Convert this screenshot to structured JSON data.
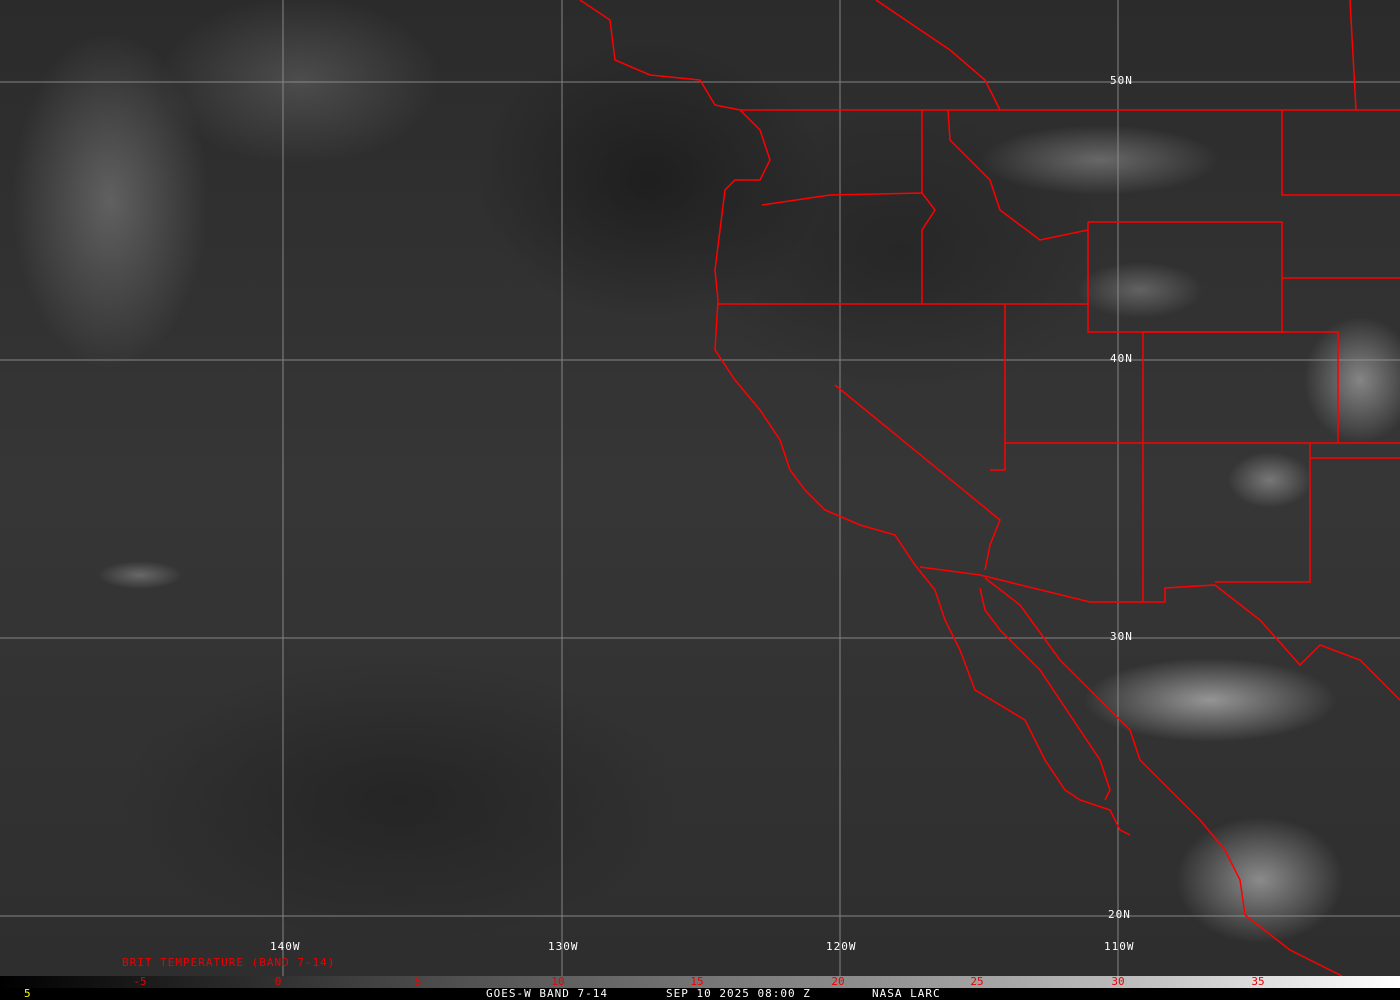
{
  "map": {
    "grid_lat_labels": [
      "50N",
      "40N",
      "30N",
      "20N"
    ],
    "grid_lon_labels": [
      "140W",
      "130W",
      "120W",
      "110W"
    ],
    "border_color": "#ff0000",
    "grid_color": "#9a9a9a"
  },
  "legend": {
    "title": "BRIT TEMPERATURE (BAND 7-14)",
    "ticks": [
      "-5",
      "0",
      "5",
      "10",
      "15",
      "20",
      "25",
      "30",
      "35"
    ],
    "range": [
      -10,
      40
    ]
  },
  "footer": {
    "frame_number": "5",
    "product": "GOES-W BAND 7-14",
    "datetime": "SEP 10 2025 08:00 Z",
    "source": "NASA LARC"
  }
}
